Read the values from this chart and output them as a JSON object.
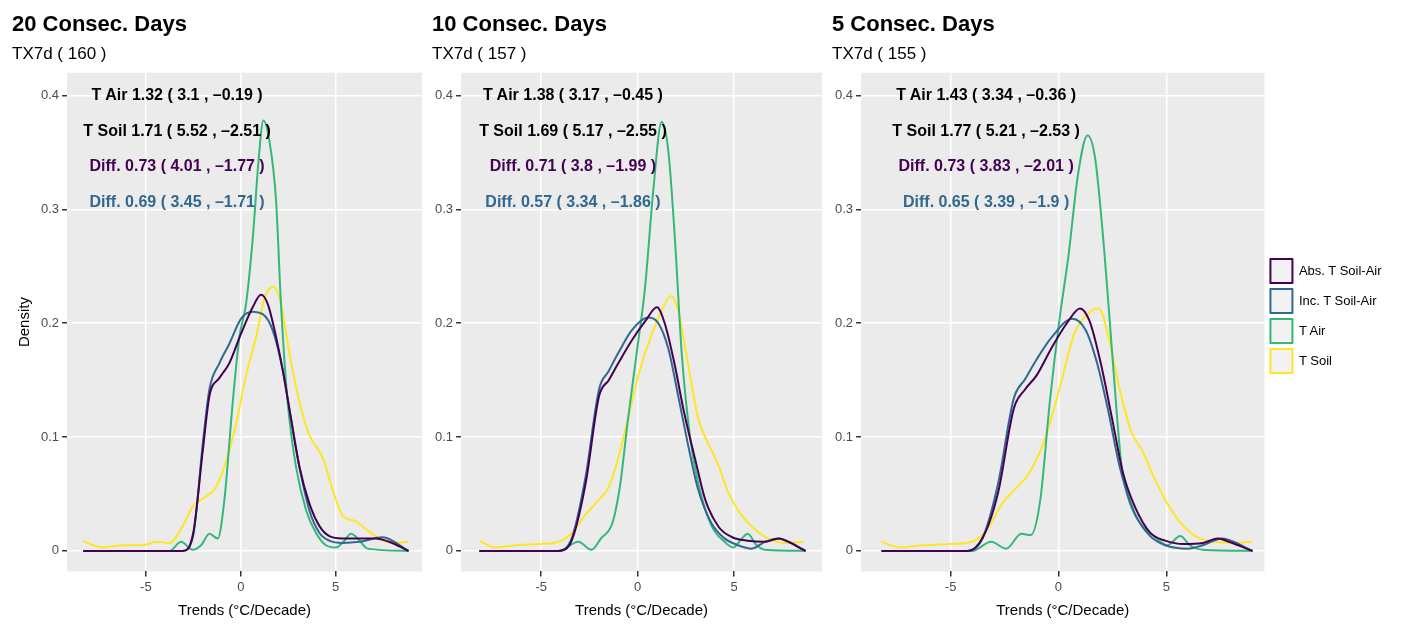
{
  "chart_data": [
    {
      "type": "line",
      "title": "20 Consec. Days",
      "subtitle": "TX7d ( 160 )",
      "xlabel": "Trends (°C/Decade)",
      "ylabel": "Density",
      "annotations": [
        "T Air 1.32 ( 3.1 , –0.19 )",
        "T Soil 1.71 ( 5.52 , –2.51 )",
        "Diff. 0.73 ( 4.01 , –1.77 )",
        "Diff. 0.69 ( 3.45 , –1.71 )"
      ],
      "xlim": [
        -9.15,
        9.55
      ],
      "xticks": [
        -5,
        0,
        5
      ],
      "ylim": [
        -0.018,
        0.42
      ],
      "yticks": [
        0,
        0.1,
        0.2,
        0.3,
        0.4
      ],
      "grid": true,
      "legend": false,
      "series": [
        {
          "color": "#440154",
          "x": [
            -8.3,
            -3.05,
            -2.5,
            -2.0,
            -1.65,
            -1.12,
            -0.6,
            0.02,
            0.63,
            1.07,
            1.42,
            1.86,
            2.21,
            2.65,
            3.09,
            3.61,
            4.14,
            4.67,
            5.37,
            7.12,
            7.82,
            8.84
          ],
          "values": [
            0,
            0,
            0.016,
            0.088,
            0.136,
            0.152,
            0.165,
            0.191,
            0.214,
            0.225,
            0.217,
            0.188,
            0.159,
            0.116,
            0.074,
            0.042,
            0.022,
            0.013,
            0.011,
            0.011,
            0.008,
            0
          ]
        },
        {
          "color": "#31688e",
          "x": [
            -8.3,
            -3.05,
            -2.5,
            -2.0,
            -1.65,
            -1.12,
            -0.6,
            0.02,
            0.63,
            1.16,
            1.68,
            2.21,
            2.65,
            3.09,
            3.61,
            4.14,
            4.67,
            5.37,
            6.25,
            7.47,
            8.84
          ],
          "values": [
            0,
            0,
            0.014,
            0.094,
            0.142,
            0.165,
            0.182,
            0.204,
            0.21,
            0.208,
            0.194,
            0.159,
            0.116,
            0.074,
            0.036,
            0.016,
            0.009,
            0.007,
            0.008,
            0.012,
            0
          ]
        },
        {
          "color": "#35b779",
          "x": [
            -8.3,
            -3.75,
            -3.14,
            -2.53,
            -2.09,
            -1.65,
            -1.21,
            -0.86,
            -0.42,
            -0.07,
            0.28,
            0.63,
            0.95,
            1.19,
            1.51,
            1.86,
            2.12,
            2.47,
            2.91,
            3.44,
            3.96,
            4.49,
            5.02,
            5.46,
            5.81,
            6.16,
            6.68,
            8.84
          ],
          "values": [
            0,
            0,
            0.008,
            0.001,
            0.005,
            0.015,
            0.011,
            0.045,
            0.131,
            0.188,
            0.217,
            0.274,
            0.345,
            0.378,
            0.36,
            0.308,
            0.217,
            0.131,
            0.074,
            0.036,
            0.016,
            0.005,
            0.003,
            0.009,
            0.015,
            0.011,
            0.002,
            0
          ]
        },
        {
          "color": "#fde725",
          "x": [
            -8.3,
            -7.79,
            -7.26,
            -6.21,
            -5.16,
            -4.46,
            -3.75,
            -3.05,
            -2.53,
            -1.82,
            -1.3,
            -0.77,
            -0.25,
            0.28,
            0.81,
            1.25,
            1.72,
            2.12,
            2.56,
            3.09,
            3.61,
            4.32,
            4.84,
            5.37,
            6.07,
            6.68,
            7.3,
            8.0,
            8.84
          ],
          "values": [
            0.009,
            0.005,
            0.003,
            0.005,
            0.005,
            0.008,
            0.007,
            0.022,
            0.039,
            0.048,
            0.056,
            0.079,
            0.111,
            0.154,
            0.188,
            0.222,
            0.232,
            0.217,
            0.174,
            0.131,
            0.102,
            0.082,
            0.054,
            0.031,
            0.026,
            0.018,
            0.011,
            0.007,
            0.008
          ]
        }
      ]
    },
    {
      "type": "line",
      "title": "10 Consec. Days",
      "subtitle": "TX7d ( 157 )",
      "xlabel": "Trends (°C/Decade)",
      "annotations": [
        "T Air 1.38 ( 3.17 , –0.45 )",
        "T Soil 1.69 ( 5.17 , –2.55 )",
        "Diff. 0.71 ( 3.8 , –1.99 )",
        "Diff. 0.57 ( 3.34 , –1.86 )"
      ],
      "xlim": [
        -9.15,
        9.55
      ],
      "xticks": [
        -5,
        0,
        5
      ],
      "ylim": [
        -0.018,
        0.42
      ],
      "yticks": [
        0,
        0.1,
        0.2,
        0.3,
        0.4
      ],
      "grid": true,
      "legend": false,
      "series": [
        {
          "color": "#440154",
          "x": [
            -8.2,
            -4.1,
            -3.4,
            -2.7,
            -2.0,
            -1.5,
            -1.0,
            -0.3,
            0.4,
            1.0,
            1.4,
            1.9,
            2.4,
            3.0,
            3.5,
            4.2,
            4.9,
            5.7,
            6.6,
            7.3,
            7.8,
            8.7
          ],
          "values": [
            0,
            0,
            0.01,
            0.059,
            0.136,
            0.15,
            0.165,
            0.185,
            0.202,
            0.214,
            0.2,
            0.165,
            0.122,
            0.079,
            0.045,
            0.021,
            0.012,
            0.009,
            0.008,
            0.011,
            0.008,
            0
          ]
        },
        {
          "color": "#31688e",
          "x": [
            -8.2,
            -4.1,
            -3.4,
            -2.7,
            -2.0,
            -1.5,
            -1.0,
            -0.3,
            0.55,
            1.07,
            1.6,
            2.1,
            2.6,
            3.1,
            3.8,
            4.5,
            5.2,
            5.9,
            6.6,
            7.3,
            8.7
          ],
          "values": [
            0,
            0,
            0.012,
            0.065,
            0.142,
            0.158,
            0.174,
            0.194,
            0.205,
            0.2,
            0.177,
            0.136,
            0.094,
            0.056,
            0.025,
            0.011,
            0.005,
            0.002,
            0.008,
            0.011,
            0
          ]
        },
        {
          "color": "#35b779",
          "x": [
            -8.2,
            -4.1,
            -3.07,
            -2.4,
            -1.9,
            -1.3,
            -0.9,
            -0.5,
            -0.05,
            0.38,
            0.81,
            1.24,
            1.59,
            1.93,
            2.28,
            2.7,
            3.14,
            3.83,
            4.5,
            4.95,
            5.4,
            5.7,
            6.16,
            6.6,
            8.7
          ],
          "values": [
            0,
            0,
            0.008,
            0.001,
            0.011,
            0.025,
            0.059,
            0.116,
            0.174,
            0.231,
            0.317,
            0.377,
            0.351,
            0.274,
            0.174,
            0.102,
            0.059,
            0.022,
            0.008,
            0.003,
            0.011,
            0.015,
            0.005,
            0.001,
            0
          ]
        },
        {
          "color": "#fde725",
          "x": [
            -8.2,
            -7.4,
            -6.3,
            -5.1,
            -4.1,
            -3.4,
            -2.7,
            -2.0,
            -1.5,
            -1.0,
            -0.5,
            0.03,
            0.55,
            1.24,
            1.72,
            2.1,
            2.6,
            3.14,
            3.66,
            4.17,
            4.7,
            5.4,
            6.07,
            6.76,
            7.6,
            8.6
          ],
          "values": [
            0.009,
            0.003,
            0.005,
            0.006,
            0.008,
            0.016,
            0.032,
            0.045,
            0.056,
            0.082,
            0.116,
            0.154,
            0.182,
            0.211,
            0.224,
            0.211,
            0.165,
            0.116,
            0.094,
            0.076,
            0.051,
            0.031,
            0.019,
            0.011,
            0.007,
            0.008
          ]
        }
      ]
    },
    {
      "type": "line",
      "title": "5 Consec. Days",
      "subtitle": "TX7d ( 155 )",
      "xlabel": "Trends (°C/Decade)",
      "annotations": [
        "T Air 1.43 ( 3.34 , –0.36 )",
        "T Soil 1.77 ( 5.21 , –2.53 )",
        "Diff. 0.73 ( 3.83 , –2.01 )",
        "Diff. 0.65 ( 3.39 , –1.9 )"
      ],
      "xlim": [
        -9.15,
        9.55
      ],
      "xticks": [
        -5,
        0,
        5
      ],
      "ylim": [
        -0.018,
        0.42
      ],
      "yticks": [
        0,
        0.1,
        0.2,
        0.3,
        0.4
      ],
      "grid": true,
      "legend": "right",
      "series": [
        {
          "name": "Abs. T Soil-Air",
          "color": "#440154",
          "x": [
            -8.2,
            -4.2,
            -3.5,
            -2.8,
            -2.07,
            -1.54,
            -1.02,
            -0.3,
            0.39,
            1.0,
            1.44,
            1.96,
            2.49,
            3.0,
            3.54,
            4.25,
            4.95,
            5.8,
            6.7,
            7.4,
            7.9,
            9.0
          ],
          "values": [
            0,
            0,
            0.012,
            0.051,
            0.125,
            0.142,
            0.154,
            0.179,
            0.2,
            0.213,
            0.202,
            0.165,
            0.116,
            0.068,
            0.039,
            0.016,
            0.009,
            0.006,
            0.007,
            0.011,
            0.008,
            0
          ]
        },
        {
          "name": "Inc. T Soil-Air",
          "color": "#31688e",
          "x": [
            -8.2,
            -4.2,
            -3.5,
            -2.8,
            -2.07,
            -1.54,
            -1.02,
            -0.3,
            0.65,
            1.26,
            1.79,
            2.32,
            2.84,
            3.54,
            4.25,
            4.95,
            6.0,
            6.7,
            7.58,
            9.0
          ],
          "values": [
            0,
            0,
            0.012,
            0.059,
            0.134,
            0.151,
            0.168,
            0.188,
            0.204,
            0.194,
            0.165,
            0.122,
            0.074,
            0.033,
            0.013,
            0.005,
            0.002,
            0.005,
            0.011,
            0
          ]
        },
        {
          "name": "T Air",
          "color": "#35b779",
          "x": [
            -8.2,
            -4.0,
            -3.12,
            -2.42,
            -1.72,
            -1.28,
            -0.84,
            -0.4,
            0.04,
            0.47,
            0.91,
            1.35,
            1.7,
            2.14,
            2.49,
            2.93,
            3.37,
            3.89,
            4.42,
            5.04,
            5.65,
            6.09,
            6.7,
            9.0
          ],
          "values": [
            0,
            0,
            0.008,
            0.002,
            0.015,
            0.014,
            0.045,
            0.131,
            0.202,
            0.26,
            0.331,
            0.365,
            0.345,
            0.26,
            0.174,
            0.074,
            0.039,
            0.022,
            0.013,
            0.005,
            0.013,
            0.005,
            0.001,
            0
          ]
        },
        {
          "name": "T Soil",
          "color": "#fde725",
          "x": [
            -8.2,
            -7.33,
            -6.28,
            -5.05,
            -4.0,
            -3.3,
            -2.6,
            -2.07,
            -1.37,
            -0.67,
            0.04,
            0.74,
            1.35,
            1.88,
            2.32,
            2.84,
            3.37,
            3.89,
            4.42,
            4.95,
            5.65,
            6.35,
            7.23,
            8.1,
            9.0
          ],
          "values": [
            0.008,
            0.003,
            0.005,
            0.006,
            0.008,
            0.019,
            0.042,
            0.053,
            0.068,
            0.096,
            0.142,
            0.191,
            0.208,
            0.213,
            0.188,
            0.142,
            0.105,
            0.088,
            0.065,
            0.045,
            0.025,
            0.013,
            0.008,
            0.007,
            0.008
          ]
        }
      ]
    }
  ]
}
